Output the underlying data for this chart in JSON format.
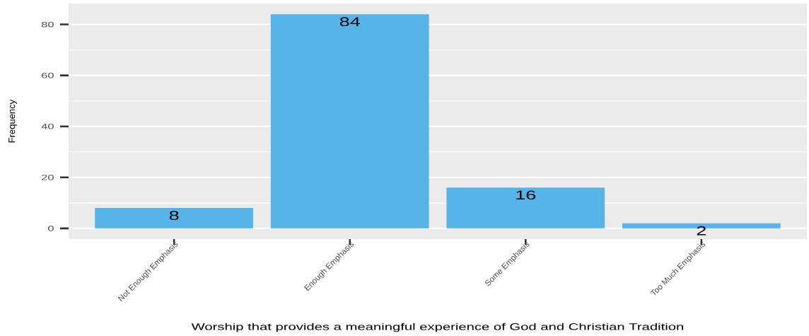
{
  "chart_data": {
    "type": "bar",
    "xlabel": "Worship that provides a meaningful experience of God and Christian Tradition",
    "ylabel": "Frequency",
    "categories": [
      "Not Enough Emphasis",
      "Enough Emphasis",
      "Some Emphasis",
      "Too Much Emphasis"
    ],
    "values": [
      8,
      84,
      16,
      2
    ],
    "color": "#56b4e9",
    "ylim": [
      -4.2,
      88.2
    ],
    "yticks": [
      0,
      20,
      40,
      60,
      80
    ],
    "grid": "y",
    "data_labels": true
  }
}
